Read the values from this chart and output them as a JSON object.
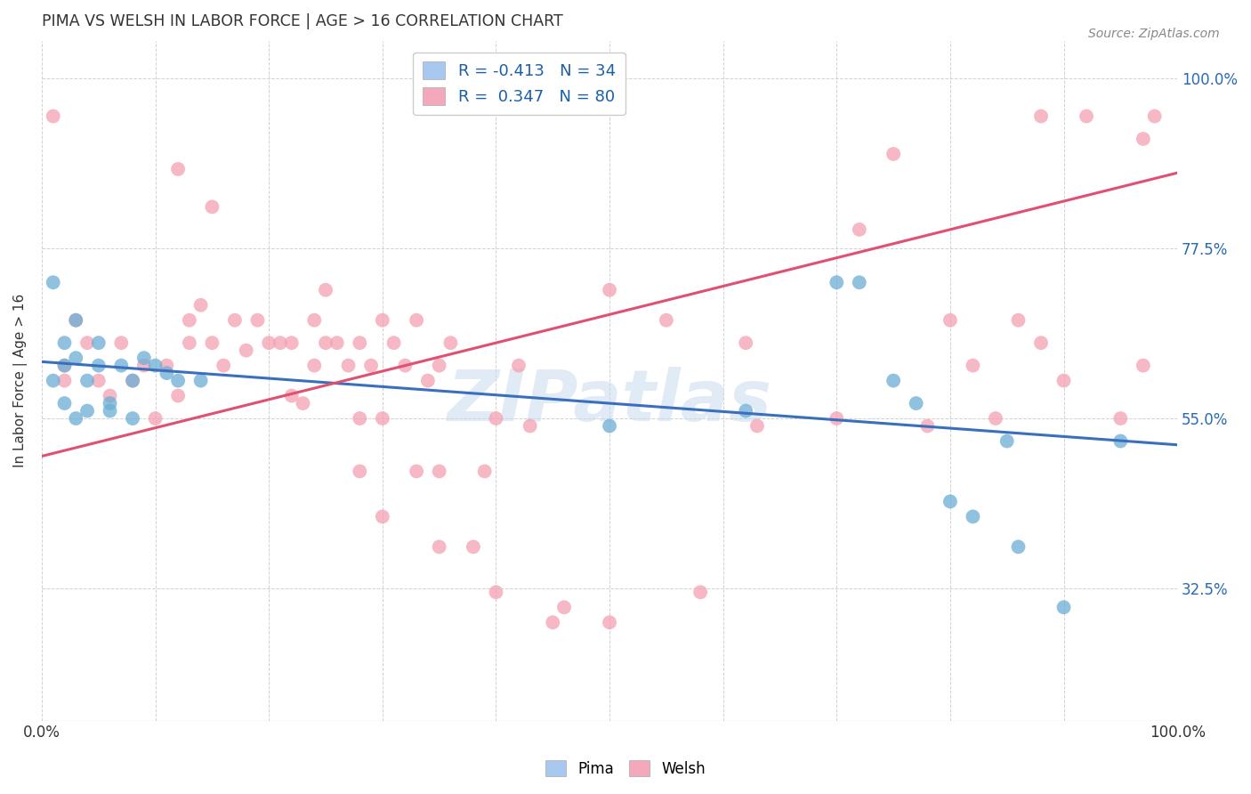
{
  "title": "PIMA VS WELSH IN LABOR FORCE | AGE > 16 CORRELATION CHART",
  "source": "Source: ZipAtlas.com",
  "ylabel": "In Labor Force | Age > 16",
  "watermark": "ZIPatlas",
  "xlim": [
    0.0,
    1.0
  ],
  "ylim": [
    0.15,
    1.05
  ],
  "background_color": "#ffffff",
  "grid_color": "#cccccc",
  "pima_color": "#6baed6",
  "welsh_color": "#f4a0b0",
  "pima_line_color": "#3a6fbf",
  "welsh_line_color": "#e05070",
  "pima_r": -0.413,
  "welsh_r": 0.347,
  "pima_line_x0": 0.0,
  "pima_line_y0": 0.625,
  "pima_line_x1": 1.0,
  "pima_line_y1": 0.515,
  "welsh_line_x0": 0.0,
  "welsh_line_y0": 0.5,
  "welsh_line_x1": 1.0,
  "welsh_line_y1": 0.875,
  "ytick_positions": [
    0.325,
    0.55,
    0.775,
    1.0
  ],
  "ytick_labels": [
    "32.5%",
    "55.0%",
    "77.5%",
    "100.0%"
  ],
  "xtick_labels_left": "0.0%",
  "xtick_labels_right": "100.0%",
  "legend1_label": "R = -0.413   N = 34",
  "legend2_label": "R =  0.347   N = 80",
  "legend1_color": "#a8c8f0",
  "legend2_color": "#f4a8bc",
  "bottom_legend_pima": "Pima",
  "bottom_legend_welsh": "Welsh",
  "pima_points": [
    [
      0.01,
      0.6
    ],
    [
      0.01,
      0.73
    ],
    [
      0.02,
      0.65
    ],
    [
      0.02,
      0.57
    ],
    [
      0.02,
      0.62
    ],
    [
      0.03,
      0.68
    ],
    [
      0.03,
      0.55
    ],
    [
      0.03,
      0.63
    ],
    [
      0.04,
      0.6
    ],
    [
      0.04,
      0.56
    ],
    [
      0.05,
      0.65
    ],
    [
      0.05,
      0.62
    ],
    [
      0.06,
      0.57
    ],
    [
      0.06,
      0.56
    ],
    [
      0.07,
      0.62
    ],
    [
      0.08,
      0.6
    ],
    [
      0.08,
      0.55
    ],
    [
      0.09,
      0.63
    ],
    [
      0.1,
      0.62
    ],
    [
      0.11,
      0.61
    ],
    [
      0.12,
      0.6
    ],
    [
      0.14,
      0.6
    ],
    [
      0.5,
      0.54
    ],
    [
      0.62,
      0.56
    ],
    [
      0.7,
      0.73
    ],
    [
      0.72,
      0.73
    ],
    [
      0.75,
      0.6
    ],
    [
      0.77,
      0.57
    ],
    [
      0.8,
      0.44
    ],
    [
      0.82,
      0.42
    ],
    [
      0.85,
      0.52
    ],
    [
      0.86,
      0.38
    ],
    [
      0.9,
      0.3
    ],
    [
      0.95,
      0.52
    ]
  ],
  "welsh_points": [
    [
      0.01,
      0.95
    ],
    [
      0.02,
      0.62
    ],
    [
      0.02,
      0.6
    ],
    [
      0.03,
      0.68
    ],
    [
      0.04,
      0.65
    ],
    [
      0.05,
      0.6
    ],
    [
      0.06,
      0.58
    ],
    [
      0.07,
      0.65
    ],
    [
      0.08,
      0.6
    ],
    [
      0.09,
      0.62
    ],
    [
      0.1,
      0.55
    ],
    [
      0.11,
      0.62
    ],
    [
      0.12,
      0.58
    ],
    [
      0.12,
      0.88
    ],
    [
      0.13,
      0.65
    ],
    [
      0.13,
      0.68
    ],
    [
      0.14,
      0.7
    ],
    [
      0.15,
      0.83
    ],
    [
      0.15,
      0.65
    ],
    [
      0.16,
      0.62
    ],
    [
      0.17,
      0.68
    ],
    [
      0.18,
      0.64
    ],
    [
      0.19,
      0.68
    ],
    [
      0.2,
      0.65
    ],
    [
      0.21,
      0.65
    ],
    [
      0.22,
      0.58
    ],
    [
      0.22,
      0.65
    ],
    [
      0.23,
      0.57
    ],
    [
      0.24,
      0.62
    ],
    [
      0.24,
      0.68
    ],
    [
      0.25,
      0.65
    ],
    [
      0.26,
      0.65
    ],
    [
      0.27,
      0.62
    ],
    [
      0.28,
      0.55
    ],
    [
      0.28,
      0.48
    ],
    [
      0.28,
      0.65
    ],
    [
      0.29,
      0.62
    ],
    [
      0.3,
      0.68
    ],
    [
      0.3,
      0.55
    ],
    [
      0.31,
      0.65
    ],
    [
      0.32,
      0.62
    ],
    [
      0.33,
      0.68
    ],
    [
      0.33,
      0.48
    ],
    [
      0.34,
      0.6
    ],
    [
      0.35,
      0.48
    ],
    [
      0.35,
      0.62
    ],
    [
      0.36,
      0.65
    ],
    [
      0.38,
      0.38
    ],
    [
      0.39,
      0.48
    ],
    [
      0.4,
      0.55
    ],
    [
      0.42,
      0.62
    ],
    [
      0.43,
      0.54
    ],
    [
      0.45,
      0.28
    ],
    [
      0.46,
      0.3
    ],
    [
      0.5,
      0.72
    ],
    [
      0.5,
      0.28
    ],
    [
      0.55,
      0.68
    ],
    [
      0.58,
      0.32
    ],
    [
      0.62,
      0.65
    ],
    [
      0.63,
      0.54
    ],
    [
      0.7,
      0.55
    ],
    [
      0.72,
      0.8
    ],
    [
      0.75,
      0.9
    ],
    [
      0.78,
      0.54
    ],
    [
      0.8,
      0.68
    ],
    [
      0.82,
      0.62
    ],
    [
      0.84,
      0.55
    ],
    [
      0.86,
      0.68
    ],
    [
      0.88,
      0.65
    ],
    [
      0.88,
      0.95
    ],
    [
      0.9,
      0.6
    ],
    [
      0.92,
      0.95
    ],
    [
      0.95,
      0.55
    ],
    [
      0.97,
      0.62
    ],
    [
      0.97,
      0.92
    ],
    [
      0.98,
      0.95
    ],
    [
      0.25,
      0.72
    ],
    [
      0.3,
      0.42
    ],
    [
      0.35,
      0.38
    ],
    [
      0.4,
      0.32
    ]
  ]
}
